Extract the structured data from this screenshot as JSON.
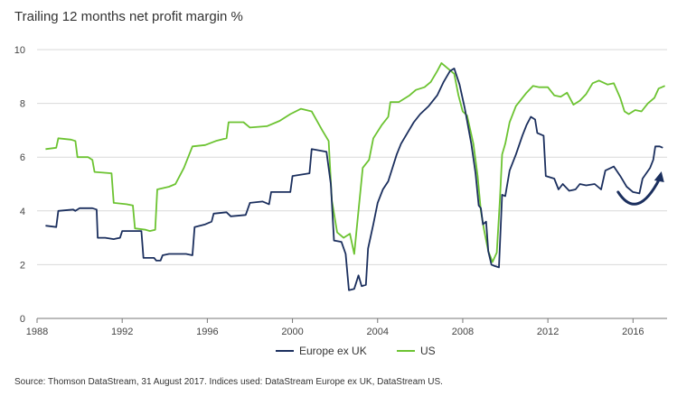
{
  "chart_data": {
    "type": "line",
    "title": "Trailing 12 months net profit margin %",
    "xlabel": "",
    "ylabel": "",
    "xlim": [
      1988,
      2017.6
    ],
    "ylim": [
      0,
      10
    ],
    "xticks": [
      1988,
      1992,
      1996,
      2000,
      2004,
      2008,
      2012,
      2016
    ],
    "yticks": [
      0,
      2,
      4,
      6,
      8,
      10
    ],
    "grid": "horizontal",
    "legend_position": "bottom-center",
    "colors": {
      "europe": "#1b2f5e",
      "us": "#6cc331",
      "axis": "#777777",
      "grid": "#d9d9d9",
      "arrow": "#1b2f5e"
    },
    "annotation": "curved-arrow-upward",
    "series": [
      {
        "name": "Europe ex UK",
        "key": "europe",
        "points": [
          [
            1988.4,
            3.45
          ],
          [
            1988.9,
            3.4
          ],
          [
            1989.0,
            4.0
          ],
          [
            1989.7,
            4.05
          ],
          [
            1989.8,
            4.0
          ],
          [
            1990.0,
            4.1
          ],
          [
            1990.6,
            4.1
          ],
          [
            1990.8,
            4.05
          ],
          [
            1990.85,
            3.0
          ],
          [
            1991.2,
            3.0
          ],
          [
            1991.6,
            2.95
          ],
          [
            1991.9,
            3.0
          ],
          [
            1992.0,
            3.25
          ],
          [
            1992.9,
            3.25
          ],
          [
            1993.0,
            2.25
          ],
          [
            1993.5,
            2.25
          ],
          [
            1993.6,
            2.15
          ],
          [
            1993.8,
            2.15
          ],
          [
            1993.9,
            2.35
          ],
          [
            1994.2,
            2.4
          ],
          [
            1995.0,
            2.4
          ],
          [
            1995.3,
            2.35
          ],
          [
            1995.4,
            3.4
          ],
          [
            1995.9,
            3.5
          ],
          [
            1996.2,
            3.6
          ],
          [
            1996.3,
            3.9
          ],
          [
            1996.9,
            3.95
          ],
          [
            1997.1,
            3.8
          ],
          [
            1997.8,
            3.85
          ],
          [
            1998.0,
            4.3
          ],
          [
            1998.6,
            4.35
          ],
          [
            1998.9,
            4.25
          ],
          [
            1999.0,
            4.7
          ],
          [
            1999.9,
            4.7
          ],
          [
            2000.0,
            5.3
          ],
          [
            2000.8,
            5.4
          ],
          [
            2000.9,
            6.3
          ],
          [
            2001.6,
            6.2
          ],
          [
            2001.8,
            5.0
          ],
          [
            2001.95,
            2.9
          ],
          [
            2002.3,
            2.85
          ],
          [
            2002.5,
            2.4
          ],
          [
            2002.65,
            1.05
          ],
          [
            2002.9,
            1.1
          ],
          [
            2003.1,
            1.6
          ],
          [
            2003.25,
            1.2
          ],
          [
            2003.45,
            1.25
          ],
          [
            2003.55,
            2.6
          ],
          [
            2003.8,
            3.5
          ],
          [
            2004.0,
            4.3
          ],
          [
            2004.25,
            4.8
          ],
          [
            2004.5,
            5.1
          ],
          [
            2004.7,
            5.6
          ],
          [
            2004.9,
            6.1
          ],
          [
            2005.1,
            6.5
          ],
          [
            2005.4,
            6.9
          ],
          [
            2005.7,
            7.3
          ],
          [
            2006.0,
            7.6
          ],
          [
            2006.4,
            7.9
          ],
          [
            2006.8,
            8.3
          ],
          [
            2007.1,
            8.8
          ],
          [
            2007.4,
            9.2
          ],
          [
            2007.6,
            9.3
          ],
          [
            2007.85,
            8.7
          ],
          [
            2008.1,
            7.8
          ],
          [
            2008.4,
            6.5
          ],
          [
            2008.6,
            5.4
          ],
          [
            2008.75,
            4.2
          ],
          [
            2008.85,
            4.1
          ],
          [
            2008.95,
            3.5
          ],
          [
            2009.1,
            3.6
          ],
          [
            2009.2,
            2.5
          ],
          [
            2009.35,
            2.0
          ],
          [
            2009.5,
            1.95
          ],
          [
            2009.7,
            1.9
          ],
          [
            2009.85,
            4.6
          ],
          [
            2010.0,
            4.55
          ],
          [
            2010.2,
            5.5
          ],
          [
            2010.5,
            6.1
          ],
          [
            2010.8,
            6.8
          ],
          [
            2011.0,
            7.2
          ],
          [
            2011.2,
            7.5
          ],
          [
            2011.4,
            7.4
          ],
          [
            2011.5,
            6.9
          ],
          [
            2011.8,
            6.8
          ],
          [
            2011.9,
            5.3
          ],
          [
            2012.3,
            5.2
          ],
          [
            2012.5,
            4.8
          ],
          [
            2012.7,
            5.0
          ],
          [
            2013.0,
            4.75
          ],
          [
            2013.3,
            4.8
          ],
          [
            2013.5,
            5.0
          ],
          [
            2013.8,
            4.95
          ],
          [
            2014.2,
            5.0
          ],
          [
            2014.5,
            4.8
          ],
          [
            2014.7,
            5.5
          ],
          [
            2015.1,
            5.65
          ],
          [
            2015.4,
            5.3
          ],
          [
            2015.7,
            4.9
          ],
          [
            2016.0,
            4.7
          ],
          [
            2016.3,
            4.65
          ],
          [
            2016.45,
            5.2
          ],
          [
            2016.8,
            5.6
          ],
          [
            2016.95,
            5.9
          ],
          [
            2017.05,
            6.4
          ],
          [
            2017.25,
            6.4
          ],
          [
            2017.4,
            6.35
          ]
        ]
      },
      {
        "name": "US",
        "key": "us",
        "points": [
          [
            1988.4,
            6.3
          ],
          [
            1988.9,
            6.35
          ],
          [
            1989.0,
            6.7
          ],
          [
            1989.6,
            6.65
          ],
          [
            1989.8,
            6.6
          ],
          [
            1989.9,
            6.0
          ],
          [
            1990.4,
            6.0
          ],
          [
            1990.6,
            5.9
          ],
          [
            1990.7,
            5.45
          ],
          [
            1991.5,
            5.4
          ],
          [
            1991.6,
            4.3
          ],
          [
            1992.2,
            4.25
          ],
          [
            1992.5,
            4.2
          ],
          [
            1992.6,
            3.35
          ],
          [
            1993.1,
            3.3
          ],
          [
            1993.3,
            3.25
          ],
          [
            1993.55,
            3.3
          ],
          [
            1993.65,
            4.8
          ],
          [
            1994.2,
            4.9
          ],
          [
            1994.5,
            5.0
          ],
          [
            1994.9,
            5.6
          ],
          [
            1995.3,
            6.4
          ],
          [
            1995.9,
            6.45
          ],
          [
            1996.4,
            6.6
          ],
          [
            1996.9,
            6.7
          ],
          [
            1997.0,
            7.3
          ],
          [
            1997.7,
            7.3
          ],
          [
            1998.0,
            7.1
          ],
          [
            1998.8,
            7.15
          ],
          [
            1999.4,
            7.35
          ],
          [
            1999.9,
            7.6
          ],
          [
            2000.4,
            7.8
          ],
          [
            2000.9,
            7.7
          ],
          [
            2001.4,
            7.0
          ],
          [
            2001.7,
            6.6
          ],
          [
            2001.85,
            4.4
          ],
          [
            2002.1,
            3.2
          ],
          [
            2002.4,
            3.0
          ],
          [
            2002.7,
            3.15
          ],
          [
            2002.9,
            2.4
          ],
          [
            2003.05,
            3.6
          ],
          [
            2003.3,
            5.6
          ],
          [
            2003.6,
            5.9
          ],
          [
            2003.8,
            6.7
          ],
          [
            2004.2,
            7.2
          ],
          [
            2004.5,
            7.5
          ],
          [
            2004.6,
            8.05
          ],
          [
            2005.0,
            8.05
          ],
          [
            2005.5,
            8.3
          ],
          [
            2005.8,
            8.5
          ],
          [
            2006.2,
            8.6
          ],
          [
            2006.5,
            8.8
          ],
          [
            2006.8,
            9.2
          ],
          [
            2007.0,
            9.5
          ],
          [
            2007.3,
            9.3
          ],
          [
            2007.6,
            9.1
          ],
          [
            2007.8,
            8.3
          ],
          [
            2008.0,
            7.7
          ],
          [
            2008.2,
            7.55
          ],
          [
            2008.5,
            6.5
          ],
          [
            2008.7,
            5.3
          ],
          [
            2008.85,
            4.0
          ],
          [
            2009.0,
            3.3
          ],
          [
            2009.2,
            2.5
          ],
          [
            2009.4,
            2.1
          ],
          [
            2009.6,
            2.45
          ],
          [
            2009.75,
            4.5
          ],
          [
            2009.85,
            6.1
          ],
          [
            2010.0,
            6.5
          ],
          [
            2010.2,
            7.3
          ],
          [
            2010.5,
            7.9
          ],
          [
            2010.8,
            8.2
          ],
          [
            2011.0,
            8.4
          ],
          [
            2011.3,
            8.65
          ],
          [
            2011.6,
            8.6
          ],
          [
            2012.0,
            8.6
          ],
          [
            2012.3,
            8.3
          ],
          [
            2012.6,
            8.25
          ],
          [
            2012.9,
            8.4
          ],
          [
            2013.2,
            7.95
          ],
          [
            2013.5,
            8.1
          ],
          [
            2013.8,
            8.35
          ],
          [
            2014.1,
            8.75
          ],
          [
            2014.4,
            8.85
          ],
          [
            2014.8,
            8.7
          ],
          [
            2015.1,
            8.75
          ],
          [
            2015.4,
            8.2
          ],
          [
            2015.6,
            7.7
          ],
          [
            2015.8,
            7.6
          ],
          [
            2016.1,
            7.75
          ],
          [
            2016.4,
            7.7
          ],
          [
            2016.7,
            8.0
          ],
          [
            2017.0,
            8.2
          ],
          [
            2017.2,
            8.55
          ],
          [
            2017.5,
            8.65
          ]
        ]
      }
    ],
    "source": "Source: Thomson DataStream, 31 August 2017. Indices used: DataStream  Europe ex UK, DataStream  US."
  }
}
